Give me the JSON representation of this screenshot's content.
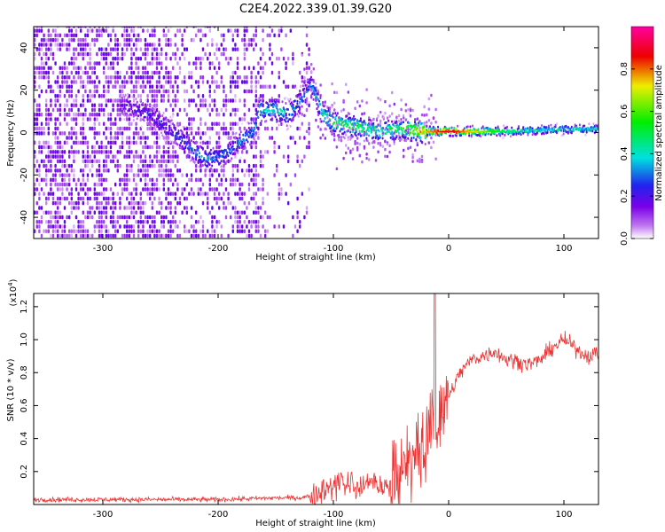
{
  "title": "C2E4.2022.339.01.39.G20",
  "colors": {
    "snr_line": "#ee3333",
    "spectrogram_scale": [
      "#ffffff",
      "#c078f0",
      "#7a00e8",
      "#2222ee",
      "#00e0e0",
      "#00ee00",
      "#eeee00",
      "#ee0000",
      "#ff00a0"
    ]
  },
  "chart_data": [
    {
      "type": "heatmap",
      "xlabel": "Height of straight line (km)",
      "ylabel": "Frequency (Hz)",
      "xlim": [
        -360,
        130
      ],
      "ylim": [
        -50,
        50
      ],
      "xticks": [
        -300,
        -200,
        -100,
        0,
        100
      ],
      "yticks": [
        -40,
        -20,
        0,
        20,
        40
      ],
      "grid": false,
      "colorbar": {
        "label": "Normalized spectral amplitude",
        "ticks": [
          "0.0",
          "0.2",
          "0.4",
          "0.6",
          "0.8"
        ],
        "range": [
          0,
          1
        ]
      },
      "ridge": {
        "x": [
          -280,
          -260,
          -250,
          -240,
          -230,
          -220,
          -210,
          -200,
          -190,
          -180,
          -170,
          -165,
          -150,
          -140,
          -130,
          -120,
          -110,
          -100,
          -80,
          -60,
          -40,
          -20,
          0,
          50,
          100,
          130
        ],
        "frequency": [
          12,
          8,
          4,
          0,
          -5,
          -10,
          -13,
          -12,
          -9,
          -4,
          0,
          10,
          10,
          8,
          14,
          22,
          8,
          4,
          2,
          0,
          1,
          0,
          0,
          0,
          1,
          1
        ],
        "amplitude": [
          0.18,
          0.2,
          0.22,
          0.22,
          0.28,
          0.3,
          0.32,
          0.3,
          0.28,
          0.3,
          0.3,
          0.35,
          0.4,
          0.35,
          0.3,
          0.3,
          0.42,
          0.48,
          0.5,
          0.45,
          0.5,
          0.75,
          0.9,
          0.45,
          0.4,
          0.4
        ]
      }
    },
    {
      "type": "line",
      "xlabel": "Height of straight line (km)",
      "ylabel": "SNR (10 * v/v)",
      "yscale_label": "(x10",
      "yscale_exp": "4",
      "yscale_close": ")",
      "xlim": [
        -360,
        130
      ],
      "ylim": [
        0,
        1.28
      ],
      "xticks": [
        -300,
        -200,
        -100,
        0,
        100
      ],
      "yticks": [
        "0.2",
        "0.4",
        "0.6",
        "0.8",
        "1.0",
        "1.2"
      ],
      "grid": false,
      "series": [
        {
          "x": [
            -360,
            -300,
            -200,
            -150,
            -130,
            -120,
            -110,
            -100,
            -90,
            -80,
            -70,
            -60,
            -50,
            -40,
            -30,
            -25,
            -20,
            -15,
            -10,
            -5,
            0,
            10,
            20,
            30,
            40,
            50,
            60,
            70,
            80,
            90,
            100,
            110,
            120,
            130
          ],
          "values": [
            0.03,
            0.03,
            0.03,
            0.04,
            0.04,
            0.05,
            0.07,
            0.09,
            0.12,
            0.1,
            0.11,
            0.1,
            0.12,
            0.18,
            0.25,
            0.3,
            0.35,
            0.45,
            0.45,
            0.5,
            0.65,
            0.8,
            0.88,
            0.9,
            0.93,
            0.88,
            0.87,
            0.85,
            0.88,
            0.95,
            1.0,
            0.95,
            0.9,
            0.92
          ]
        }
      ]
    }
  ]
}
